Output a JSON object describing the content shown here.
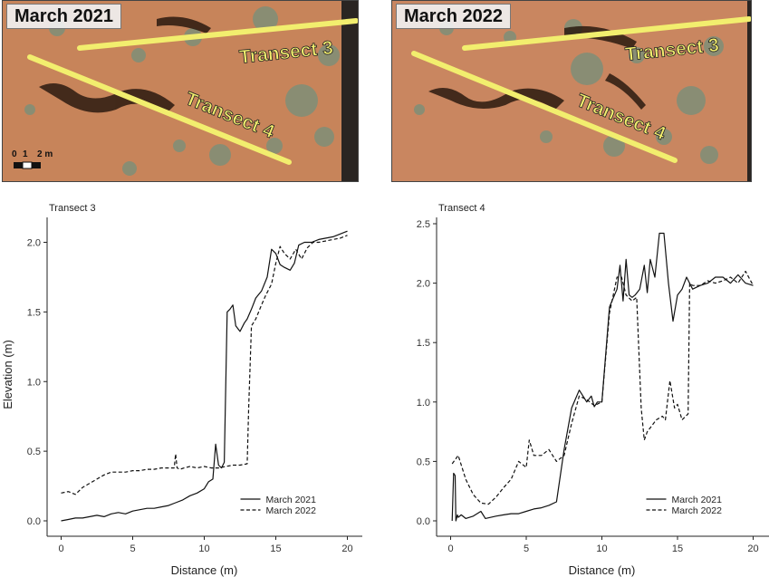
{
  "photos": [
    {
      "date": "March 2021",
      "transects": [
        "Transect 3",
        "Transect 4"
      ],
      "scale": {
        "labels": [
          "0",
          "1",
          "2 m"
        ]
      }
    },
    {
      "date": "March 2022",
      "transects": [
        "Transect 3",
        "Transect 4"
      ]
    }
  ],
  "colors": {
    "ground": "#c7845a",
    "transect_line": "#f2ee6e",
    "vegetation": "#7f8f78",
    "shadow": "#2b1a10",
    "line": "#111111"
  },
  "chart_data": [
    {
      "type": "line",
      "title": "Transect 3",
      "xlabel": "Distance (m)",
      "ylabel": "Elevation (m)",
      "xlim": [
        0,
        20
      ],
      "ylim": [
        0,
        2.0
      ],
      "xticks": [
        0,
        5,
        10,
        15,
        20
      ],
      "yticks": [
        0.0,
        0.5,
        1.0,
        1.5,
        2.0
      ],
      "legend": "bottom-right",
      "series": [
        {
          "name": "March 2021",
          "style": "solid",
          "x": [
            0,
            0.5,
            1,
            1.5,
            2,
            2.5,
            3,
            3.5,
            4,
            4.5,
            5,
            5.5,
            6,
            6.5,
            7,
            7.5,
            8,
            8.5,
            9,
            9.5,
            10,
            10.3,
            10.6,
            10.8,
            11,
            11.2,
            11.4,
            11.6,
            11.8,
            12,
            12.2,
            12.5,
            12.8,
            13,
            13.3,
            13.6,
            14,
            14.4,
            14.7,
            15,
            15.3,
            15.6,
            16,
            16.3,
            16.6,
            17,
            17.5,
            18,
            18.5,
            19,
            19.5,
            20
          ],
          "y": [
            0.0,
            0.01,
            0.02,
            0.02,
            0.03,
            0.04,
            0.03,
            0.05,
            0.06,
            0.05,
            0.07,
            0.08,
            0.09,
            0.09,
            0.1,
            0.11,
            0.13,
            0.15,
            0.18,
            0.2,
            0.23,
            0.28,
            0.3,
            0.55,
            0.4,
            0.38,
            0.42,
            1.5,
            1.52,
            1.55,
            1.4,
            1.36,
            1.42,
            1.45,
            1.52,
            1.6,
            1.65,
            1.75,
            1.95,
            1.92,
            1.84,
            1.82,
            1.8,
            1.85,
            1.98,
            2.0,
            2.0,
            2.02,
            2.03,
            2.04,
            2.06,
            2.08
          ]
        },
        {
          "name": "March 2022",
          "style": "dashed",
          "x": [
            0,
            0.5,
            1,
            1.5,
            2,
            2.5,
            3,
            3.5,
            4,
            4.5,
            5,
            5.5,
            6,
            6.5,
            7,
            7.5,
            7.9,
            8.0,
            8.1,
            8.3,
            8.6,
            9,
            9.5,
            10,
            10.5,
            11,
            11.5,
            12,
            12.5,
            13,
            13.1,
            13.3,
            13.6,
            14,
            14.3,
            14.7,
            15,
            15.3,
            15.6,
            16,
            16.4,
            16.8,
            17.2,
            17.6,
            18,
            18.5,
            19,
            19.5,
            20
          ],
          "y": [
            0.2,
            0.21,
            0.19,
            0.24,
            0.27,
            0.3,
            0.33,
            0.35,
            0.35,
            0.35,
            0.36,
            0.36,
            0.37,
            0.37,
            0.38,
            0.38,
            0.38,
            0.48,
            0.38,
            0.37,
            0.38,
            0.39,
            0.38,
            0.39,
            0.38,
            0.38,
            0.39,
            0.4,
            0.4,
            0.41,
            0.8,
            1.4,
            1.45,
            1.55,
            1.62,
            1.7,
            1.85,
            1.97,
            1.92,
            1.88,
            1.95,
            1.88,
            1.96,
            2.0,
            2.0,
            2.01,
            2.02,
            2.03,
            2.05
          ]
        }
      ]
    },
    {
      "type": "line",
      "title": "Transect 4",
      "xlabel": "Distance (m)",
      "ylabel": "",
      "xlim": [
        0,
        20
      ],
      "ylim": [
        0,
        2.5
      ],
      "xticks": [
        0,
        5,
        10,
        15,
        20
      ],
      "yticks": [
        0.0,
        0.5,
        1.0,
        1.5,
        2.0,
        2.5
      ],
      "legend": "bottom-right",
      "series": [
        {
          "name": "March 2021",
          "style": "solid",
          "x": [
            0.1,
            0.2,
            0.3,
            0.35,
            0.45,
            0.5,
            0.7,
            1,
            1.5,
            2,
            2.3,
            3,
            3.5,
            4,
            4.5,
            5,
            5.5,
            6,
            6.5,
            7,
            7.5,
            8,
            8.5,
            9,
            9.3,
            9.5,
            9.7,
            10,
            10.5,
            11,
            11.2,
            11.4,
            11.6,
            11.8,
            12,
            12.2,
            12.5,
            12.8,
            13,
            13.2,
            13.5,
            13.8,
            14.1,
            14.4,
            14.7,
            15,
            15.3,
            15.6,
            16,
            16.5,
            17,
            17.5,
            18,
            18.5,
            19,
            19.5,
            20
          ],
          "y": [
            0.0,
            0.4,
            0.38,
            0.0,
            0.05,
            0.03,
            0.05,
            0.02,
            0.04,
            0.08,
            0.02,
            0.04,
            0.05,
            0.06,
            0.06,
            0.08,
            0.1,
            0.11,
            0.13,
            0.16,
            0.6,
            0.95,
            1.1,
            1.0,
            1.05,
            0.96,
            1.0,
            1.0,
            1.8,
            1.95,
            2.15,
            1.85,
            2.2,
            1.9,
            1.88,
            1.9,
            1.95,
            2.15,
            1.92,
            2.2,
            2.05,
            2.42,
            2.42,
            2.0,
            1.68,
            1.9,
            1.95,
            2.05,
            1.95,
            1.98,
            2.0,
            2.05,
            2.05,
            2.0,
            2.07,
            2.0,
            1.98
          ]
        },
        {
          "name": "March 2022",
          "style": "dashed",
          "x": [
            0.1,
            0.5,
            1,
            1.5,
            2,
            2.5,
            3,
            3.5,
            4,
            4.5,
            5,
            5.2,
            5.5,
            6,
            6.5,
            7,
            7.5,
            8,
            8.5,
            9,
            9.5,
            10,
            10.5,
            11,
            11.3,
            11.6,
            12,
            12.3,
            12.6,
            12.8,
            13,
            13.3,
            13.6,
            14,
            14.2,
            14.5,
            14.8,
            15,
            15.3,
            15.7,
            15.8,
            16,
            16.5,
            17,
            17.5,
            18,
            18.5,
            19,
            19.5,
            20
          ],
          "y": [
            0.48,
            0.55,
            0.35,
            0.22,
            0.15,
            0.14,
            0.2,
            0.28,
            0.35,
            0.5,
            0.45,
            0.68,
            0.55,
            0.55,
            0.6,
            0.5,
            0.55,
            0.82,
            1.05,
            1.02,
            0.97,
            1.0,
            1.75,
            2.05,
            2.05,
            1.9,
            1.85,
            1.88,
            0.95,
            0.68,
            0.75,
            0.8,
            0.85,
            0.88,
            0.85,
            1.18,
            0.95,
            0.98,
            0.85,
            0.9,
            2.0,
            1.98,
            1.98,
            2.02,
            2.0,
            2.02,
            2.05,
            2.0,
            2.1,
            1.98
          ]
        }
      ]
    }
  ]
}
